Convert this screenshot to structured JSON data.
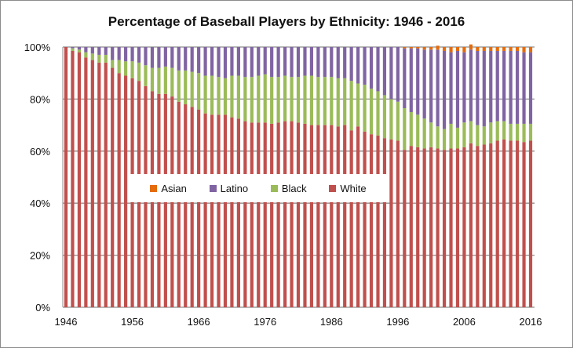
{
  "chart_data": {
    "type": "bar",
    "stacked": true,
    "title": "Percentage of Baseball Players by Ethnicity: 1946 - 2016",
    "xlabel": "",
    "ylabel": "",
    "ylim": [
      0,
      100
    ],
    "y_ticks": [
      "0%",
      "20%",
      "40%",
      "60%",
      "80%",
      "100%"
    ],
    "x_ticks": [
      "1946",
      "1956",
      "1966",
      "1976",
      "1986",
      "1996",
      "2006",
      "2016"
    ],
    "legend_position": "center-left",
    "grid": "horizontal",
    "x": [
      1946,
      1947,
      1948,
      1949,
      1950,
      1951,
      1952,
      1953,
      1954,
      1955,
      1956,
      1957,
      1958,
      1959,
      1960,
      1961,
      1962,
      1963,
      1964,
      1965,
      1966,
      1967,
      1968,
      1969,
      1970,
      1971,
      1972,
      1973,
      1974,
      1975,
      1976,
      1977,
      1978,
      1979,
      1980,
      1981,
      1982,
      1983,
      1984,
      1985,
      1986,
      1987,
      1988,
      1989,
      1990,
      1991,
      1992,
      1993,
      1994,
      1995,
      1996,
      1997,
      1998,
      1999,
      2000,
      2001,
      2002,
      2003,
      2004,
      2005,
      2006,
      2007,
      2008,
      2009,
      2010,
      2011,
      2012,
      2013,
      2014,
      2015,
      2016
    ],
    "series": [
      {
        "name": "White",
        "color": "#c0504d",
        "values": [
          100,
          98.5,
          98,
          96,
          95,
          94,
          94,
          92,
          90,
          89,
          88,
          87,
          85,
          83,
          82,
          82,
          81,
          79,
          78,
          77,
          76,
          74.5,
          74,
          74,
          74,
          73,
          72.5,
          71.5,
          71,
          71,
          71,
          70.5,
          71,
          71.5,
          71.5,
          71,
          70.5,
          70,
          70,
          70,
          70,
          69.5,
          70,
          68,
          69.5,
          67.5,
          66.5,
          66,
          65,
          64.5,
          64,
          60.5,
          62,
          61.5,
          61,
          61.5,
          61,
          60.5,
          61,
          61,
          61.5,
          63,
          62,
          62.5,
          63,
          64,
          64.5,
          64,
          64,
          63.5,
          64
        ]
      },
      {
        "name": "Black",
        "color": "#9bbb59",
        "values": [
          0,
          1,
          1,
          2,
          2.5,
          3,
          3,
          3,
          5,
          5.5,
          6.5,
          7,
          8,
          9,
          10,
          10.5,
          11,
          12,
          13,
          13.5,
          14,
          14.5,
          15,
          14.5,
          14,
          16,
          16.5,
          17,
          17.5,
          18,
          18.5,
          18,
          17.5,
          17.5,
          17,
          17.5,
          18.5,
          19,
          18.5,
          18.5,
          18.5,
          18.5,
          18,
          19,
          16.5,
          18,
          17.5,
          17,
          16.5,
          15.5,
          15,
          16,
          13,
          12.5,
          11.5,
          9.5,
          8.5,
          8,
          9.5,
          8,
          9.5,
          8.5,
          8,
          7,
          8,
          7.5,
          7,
          6.5,
          6.5,
          7,
          6.5
        ]
      },
      {
        "name": "Latino",
        "color": "#8064a2",
        "values": [
          0,
          0.5,
          1,
          2,
          2.5,
          3,
          3,
          5,
          5,
          5.5,
          5.5,
          6,
          7,
          8,
          8,
          7.5,
          8,
          9,
          9,
          9.5,
          10,
          11,
          11,
          11.5,
          12,
          11,
          11,
          11.5,
          11.5,
          11,
          10.5,
          11.5,
          11.5,
          11,
          11.5,
          11.5,
          11,
          11,
          11.5,
          11.5,
          11.5,
          12,
          12,
          13,
          14,
          14.5,
          16,
          17,
          18.5,
          20,
          21,
          23,
          24.5,
          25.5,
          26.5,
          28,
          29.5,
          30,
          27.5,
          29.5,
          27,
          27.5,
          28.5,
          29,
          27.5,
          27,
          27,
          28,
          28,
          27.5,
          27.5
        ]
      },
      {
        "name": "Asian",
        "color": "#e46c0a",
        "values": [
          0,
          0,
          0,
          0,
          0,
          0,
          0,
          0,
          0,
          0,
          0,
          0,
          0,
          0,
          0,
          0,
          0,
          0,
          0,
          0,
          0,
          0,
          0,
          0,
          0,
          0,
          0,
          0,
          0,
          0,
          0,
          0,
          0,
          0,
          0,
          0,
          0,
          0,
          0,
          0,
          0,
          0,
          0,
          0,
          0,
          0,
          0,
          0,
          0,
          0,
          0,
          0.5,
          0.5,
          0.5,
          1,
          1,
          1.5,
          1.5,
          2,
          1.5,
          2,
          2,
          1.5,
          1.5,
          1.5,
          1.5,
          1.5,
          1.5,
          1.5,
          2,
          2
        ]
      }
    ],
    "legend": [
      "Asian",
      "Latino",
      "Black",
      "White"
    ]
  }
}
